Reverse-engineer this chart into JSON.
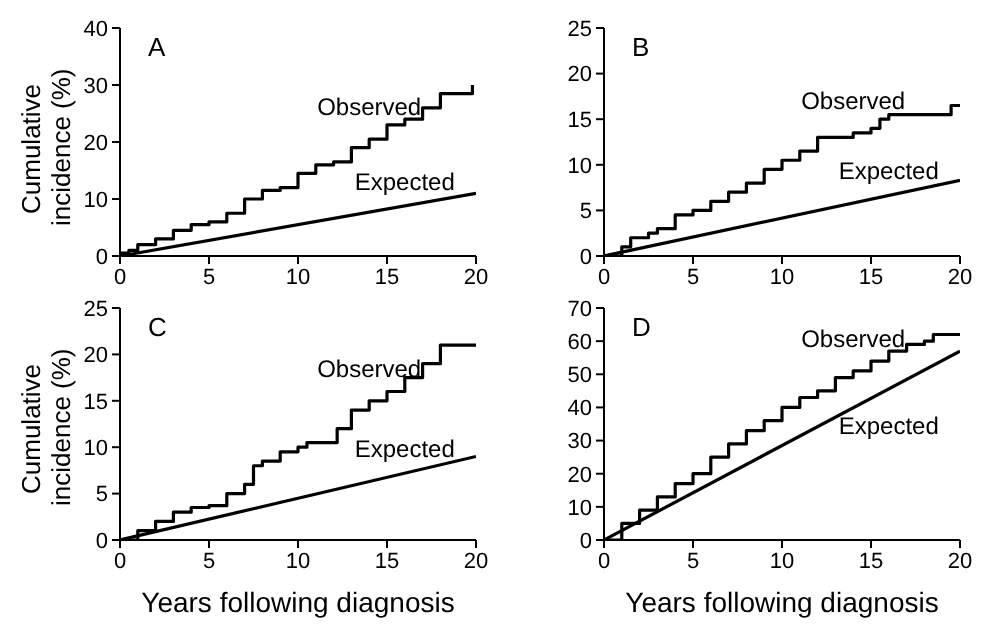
{
  "chart_data": [
    {
      "type": "step",
      "title": "A",
      "ylabel": "Cumulative incidence (%)",
      "xlim": [
        0,
        20
      ],
      "xticks": [
        0,
        5,
        10,
        15,
        20
      ],
      "ylim": [
        0,
        40
      ],
      "yticks": [
        0,
        10,
        20,
        30,
        40
      ],
      "grid": false,
      "legend": false,
      "marker": "none",
      "series": [
        {
          "name": "Observed",
          "color": "#000000",
          "x": [
            0,
            0.5,
            1,
            2,
            3,
            4,
            5,
            6,
            7,
            8,
            9,
            10,
            11,
            12,
            13,
            14,
            15,
            16,
            17,
            18,
            19.7,
            19.8
          ],
          "values": [
            0.5,
            1,
            2,
            3,
            4.5,
            5.5,
            6,
            7.5,
            10,
            11.5,
            12,
            14.5,
            16,
            16.5,
            19,
            20.5,
            23,
            24,
            26,
            28.5,
            28.5,
            30
          ]
        },
        {
          "name": "Expected",
          "type": "line",
          "color": "#000000",
          "x": [
            0,
            20
          ],
          "values": [
            0,
            11
          ]
        }
      ]
    },
    {
      "type": "step",
      "title": "B",
      "xlim": [
        0,
        20
      ],
      "xticks": [
        0,
        5,
        10,
        15,
        20
      ],
      "ylim": [
        0,
        25
      ],
      "yticks": [
        0,
        5,
        10,
        15,
        20,
        25
      ],
      "grid": false,
      "legend": false,
      "marker": "none",
      "series": [
        {
          "name": "Observed",
          "color": "#000000",
          "x": [
            0,
            1,
            1.5,
            2.5,
            3,
            4,
            5,
            6,
            7,
            8,
            9,
            10,
            11,
            12,
            13,
            14,
            15,
            15.5,
            16,
            19.3,
            19.5,
            20
          ],
          "values": [
            0,
            1,
            2,
            2.5,
            3,
            4.5,
            5,
            6,
            7,
            8,
            9.5,
            10.5,
            11.5,
            13,
            13,
            13.5,
            14,
            15,
            15.5,
            15.5,
            16.5,
            16.5
          ]
        },
        {
          "name": "Expected",
          "type": "line",
          "color": "#000000",
          "x": [
            0,
            20
          ],
          "values": [
            0,
            8.3
          ]
        }
      ]
    },
    {
      "type": "step",
      "title": "C",
      "ylabel": "Cumulative incidence (%)",
      "xlabel": "Years following diagnosis",
      "xlim": [
        0,
        20
      ],
      "xticks": [
        0,
        5,
        10,
        15,
        20
      ],
      "ylim": [
        0,
        25
      ],
      "yticks": [
        0,
        5,
        10,
        15,
        20,
        25
      ],
      "grid": false,
      "legend": false,
      "marker": "none",
      "series": [
        {
          "name": "Observed",
          "color": "#000000",
          "x": [
            0,
            1,
            2,
            3,
            4,
            5,
            6,
            7,
            7.5,
            8,
            9,
            10,
            10.5,
            12,
            12.2,
            13,
            14,
            15,
            16,
            17,
            18,
            20
          ],
          "values": [
            0,
            1,
            2,
            3,
            3.5,
            3.7,
            5,
            6,
            8,
            8.5,
            9.5,
            10,
            10.5,
            10.5,
            12,
            14,
            15,
            16,
            17.5,
            19,
            21,
            21
          ]
        },
        {
          "name": "Expected",
          "type": "line",
          "color": "#000000",
          "x": [
            0,
            20
          ],
          "values": [
            0,
            9
          ]
        }
      ]
    },
    {
      "type": "step",
      "title": "D",
      "xlabel": "Years following diagnosis",
      "xlim": [
        0,
        20
      ],
      "xticks": [
        0,
        5,
        10,
        15,
        20
      ],
      "ylim": [
        0,
        70
      ],
      "yticks": [
        0,
        10,
        20,
        30,
        40,
        50,
        60,
        70
      ],
      "grid": false,
      "legend": false,
      "marker": "none",
      "series": [
        {
          "name": "Observed",
          "color": "#000000",
          "x": [
            0,
            1,
            2,
            3,
            4,
            5,
            6,
            7,
            8,
            9,
            10,
            11,
            12,
            13,
            14,
            15,
            16,
            17,
            18,
            18.5,
            20
          ],
          "values": [
            0,
            5,
            9,
            13,
            17,
            20,
            25,
            29,
            33,
            36,
            40,
            43,
            45,
            49,
            51,
            54,
            57,
            59,
            60,
            62,
            62
          ]
        },
        {
          "name": "Expected",
          "type": "line",
          "color": "#000000",
          "x": [
            0,
            20
          ],
          "values": [
            0,
            57
          ]
        }
      ]
    }
  ]
}
